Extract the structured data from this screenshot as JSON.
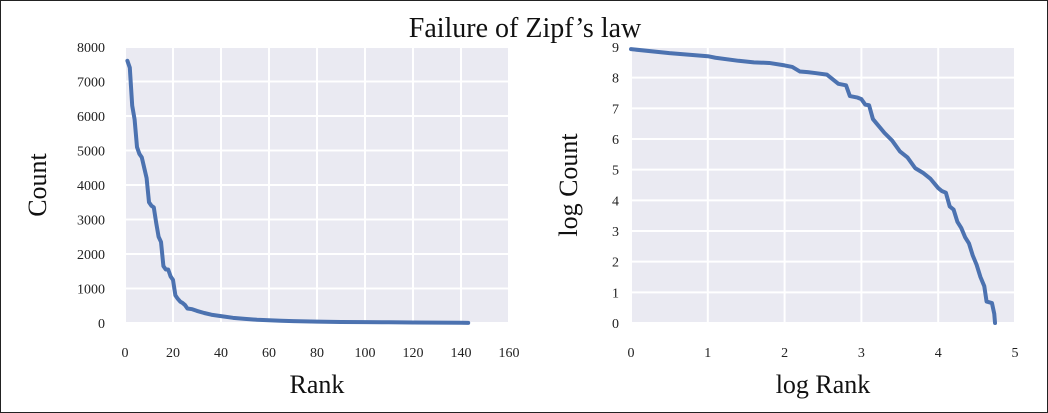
{
  "figure": {
    "title": "Failure of Zipf’s law",
    "line_color": "#4c72b0",
    "panel_color": "#eaeaf2",
    "grid_color": "#ffffff"
  },
  "chart_data": [
    {
      "type": "line",
      "xlabel": "Rank",
      "ylabel": "Count",
      "xlim": [
        0,
        160
      ],
      "ylim": [
        0,
        8000
      ],
      "xticks": [
        0,
        20,
        40,
        60,
        80,
        100,
        120,
        140,
        160
      ],
      "yticks": [
        0,
        1000,
        2000,
        3000,
        4000,
        5000,
        6000,
        7000,
        8000
      ],
      "grid": true,
      "series": [
        {
          "x": [
            1,
            2,
            3,
            4,
            5,
            6,
            7,
            8,
            9,
            10,
            11,
            12,
            13,
            14,
            15,
            16,
            17,
            18,
            19,
            20,
            21,
            22,
            23,
            24,
            25,
            26,
            28,
            30,
            33,
            36,
            40,
            45,
            50,
            55,
            60,
            65,
            70,
            80,
            90,
            100,
            110,
            120,
            130,
            140,
            143
          ],
          "y": [
            7600,
            7400,
            6300,
            5900,
            5100,
            4900,
            4800,
            4500,
            4200,
            3500,
            3400,
            3350,
            2900,
            2500,
            2350,
            1650,
            1550,
            1550,
            1350,
            1250,
            800,
            700,
            620,
            580,
            520,
            420,
            400,
            350,
            290,
            240,
            200,
            150,
            120,
            95,
            80,
            65,
            55,
            40,
            30,
            25,
            20,
            16,
            12,
            8,
            5
          ]
        }
      ]
    },
    {
      "type": "line",
      "xlabel": "log Rank",
      "ylabel": "log Count",
      "xlim": [
        0,
        5
      ],
      "ylim": [
        0,
        9
      ],
      "xticks": [
        0,
        1,
        2,
        3,
        4,
        5
      ],
      "yticks": [
        0,
        1,
        2,
        3,
        4,
        5,
        6,
        7,
        8,
        9
      ],
      "grid": true,
      "series": [
        {
          "x": [
            0,
            0.5,
            1.0,
            1.1,
            1.4,
            1.6,
            1.8,
            2.0,
            2.1,
            2.2,
            2.3,
            2.4,
            2.55,
            2.7,
            2.8,
            2.85,
            2.95,
            3.0,
            3.05,
            3.1,
            3.15,
            3.2,
            3.3,
            3.4,
            3.5,
            3.6,
            3.7,
            3.8,
            3.9,
            4.0,
            4.05,
            4.1,
            4.15,
            4.2,
            4.25,
            4.3,
            4.35,
            4.4,
            4.45,
            4.5,
            4.55,
            4.6,
            4.63,
            4.66,
            4.7,
            4.73,
            4.74
          ],
          "y": [
            8.93,
            8.8,
            8.7,
            8.65,
            8.55,
            8.5,
            8.48,
            8.4,
            8.35,
            8.2,
            8.18,
            8.15,
            8.1,
            7.8,
            7.75,
            7.4,
            7.35,
            7.3,
            7.12,
            7.1,
            6.65,
            6.5,
            6.2,
            5.95,
            5.6,
            5.4,
            5.05,
            4.9,
            4.7,
            4.4,
            4.3,
            4.25,
            3.8,
            3.7,
            3.3,
            3.1,
            2.8,
            2.6,
            2.2,
            1.9,
            1.5,
            1.2,
            0.7,
            0.68,
            0.65,
            0.3,
            0.0
          ]
        }
      ]
    }
  ]
}
